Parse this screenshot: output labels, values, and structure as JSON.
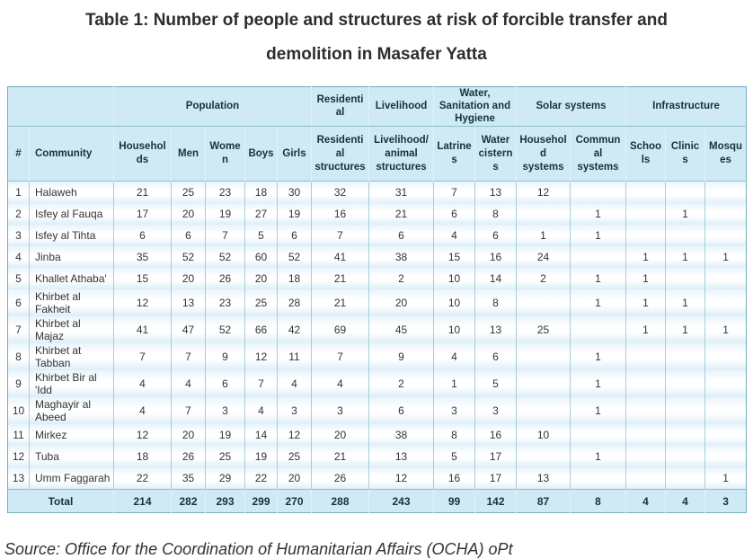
{
  "page": {
    "title_line1": "Table 1: Number of people and structures at risk of forcible transfer and",
    "title_line2": "demolition in Masafer Yatta",
    "source": "Source: Office for the Coordination of Humanitarian Affairs (OCHA) oPt"
  },
  "colors": {
    "header_bg": "#cfe9f5",
    "row_band": "#dceef8",
    "border_outer": "#74aebc",
    "border_inner": "#a7cddc",
    "text": "#333333",
    "header_text": "#16323d"
  },
  "chart_data": {
    "type": "table",
    "title": "Table 1: Number of people and structures at risk of forcible transfer and demolition in Masafer Yatta",
    "group_headers": [
      {
        "label": "",
        "colspan": 2
      },
      {
        "label": "Population",
        "colspan": 5
      },
      {
        "label": "Residential",
        "colspan": 1
      },
      {
        "label": "Livelihood",
        "colspan": 1
      },
      {
        "label": "Water, Sanitation and Hygiene",
        "colspan": 2
      },
      {
        "label": "Solar systems",
        "colspan": 2
      },
      {
        "label": "Infrastructure",
        "colspan": 3
      }
    ],
    "columns": [
      "#",
      "Community",
      "Households",
      "Men",
      "Women",
      "Boys",
      "Girls",
      "Residential structures",
      "Livelihood/animal structures",
      "Latrines",
      "Water cisterns",
      "Household systems",
      "Communal systems",
      "Schools",
      "Clinics",
      "Mosques"
    ],
    "rows": [
      [
        "1",
        "Halaweh",
        "21",
        "25",
        "23",
        "18",
        "30",
        "32",
        "31",
        "7",
        "13",
        "12",
        "",
        "",
        "",
        ""
      ],
      [
        "2",
        "Isfey al Fauqa",
        "17",
        "20",
        "19",
        "27",
        "19",
        "16",
        "21",
        "6",
        "8",
        "",
        "1",
        "",
        "1",
        ""
      ],
      [
        "3",
        "Isfey al Tihta",
        "6",
        "6",
        "7",
        "5",
        "6",
        "7",
        "6",
        "4",
        "6",
        "1",
        "1",
        "",
        "",
        ""
      ],
      [
        "4",
        "Jinba",
        "35",
        "52",
        "52",
        "60",
        "52",
        "41",
        "38",
        "15",
        "16",
        "24",
        "",
        "1",
        "1",
        "1"
      ],
      [
        "5",
        "Khallet Athaba'",
        "15",
        "20",
        "26",
        "20",
        "18",
        "21",
        "2",
        "10",
        "14",
        "2",
        "1",
        "1",
        "",
        ""
      ],
      [
        "6",
        "Khirbet al Fakheit",
        "12",
        "13",
        "23",
        "25",
        "28",
        "21",
        "20",
        "10",
        "8",
        "",
        "1",
        "1",
        "1",
        ""
      ],
      [
        "7",
        "Khirbet al Majaz",
        "41",
        "47",
        "52",
        "66",
        "42",
        "69",
        "45",
        "10",
        "13",
        "25",
        "",
        "1",
        "1",
        "1"
      ],
      [
        "8",
        "Khirbet at Tabban",
        "7",
        "7",
        "9",
        "12",
        "11",
        "7",
        "9",
        "4",
        "6",
        "",
        "1",
        "",
        "",
        ""
      ],
      [
        "9",
        "Khirbet Bir al 'Idd",
        "4",
        "4",
        "6",
        "7",
        "4",
        "4",
        "2",
        "1",
        "5",
        "",
        "1",
        "",
        "",
        ""
      ],
      [
        "10",
        "Maghayir al Abeed",
        "4",
        "7",
        "3",
        "4",
        "3",
        "3",
        "6",
        "3",
        "3",
        "",
        "1",
        "",
        "",
        ""
      ],
      [
        "11",
        "Mirkez",
        "12",
        "20",
        "19",
        "14",
        "12",
        "20",
        "38",
        "8",
        "16",
        "10",
        "",
        "",
        "",
        ""
      ],
      [
        "12",
        "Tuba",
        "18",
        "26",
        "25",
        "19",
        "25",
        "21",
        "13",
        "5",
        "17",
        "",
        "1",
        "",
        "",
        ""
      ],
      [
        "13",
        "Umm Faggarah",
        "22",
        "35",
        "29",
        "22",
        "20",
        "26",
        "12",
        "16",
        "17",
        "13",
        "",
        "",
        "",
        "1"
      ]
    ],
    "total_row": {
      "label": "Total",
      "values": [
        "214",
        "282",
        "293",
        "299",
        "270",
        "288",
        "243",
        "99",
        "142",
        "87",
        "8",
        "4",
        "4",
        "3"
      ]
    }
  }
}
